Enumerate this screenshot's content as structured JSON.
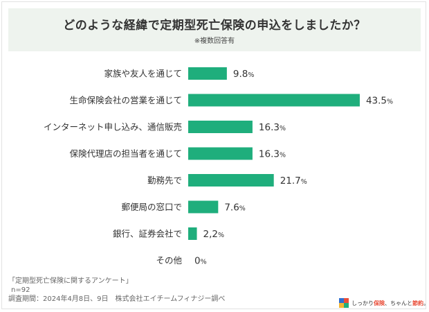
{
  "header": {
    "title": "どのような経緯で定期型死亡保険の申込をしましたか？",
    "subtitle": "※複数回答有"
  },
  "chart_data": {
    "type": "bar",
    "orientation": "horizontal",
    "categories": [
      "家族や友人を通じて",
      "生命保険会社の営業を通じて",
      "インターネット申し込み、通信販売",
      "保険代理店の担当者を通じて",
      "勤務先で",
      "郵便局の窓口で",
      "銀行、証券会社で",
      "その他"
    ],
    "values": [
      9.8,
      43.5,
      16.3,
      16.3,
      21.7,
      7.6,
      2.2,
      0
    ],
    "value_labels": [
      "9.8",
      "43.5",
      "16.3",
      "16.3",
      "21.7",
      "7.6",
      "2,2",
      "0"
    ],
    "unit": "%",
    "bar_color": "#1fae7c",
    "grid": false,
    "legend": "none"
  },
  "footer": {
    "source": "「定期型死亡保険に関するアンケート」",
    "sample": "n=92",
    "period": "調査期間：2024年4月8日、9日　株式会社エイチームフィナジー調べ"
  },
  "brand": {
    "text_a": "しっかり",
    "text_b": "保険",
    "text_c": "、ちゃんと",
    "text_d": "節約",
    "text_e": "。",
    "logo_icon": "brand-logo-icon",
    "colors": {
      "blue": "#2f6fd1",
      "red": "#e94d38",
      "green": "#1fae7c"
    }
  }
}
